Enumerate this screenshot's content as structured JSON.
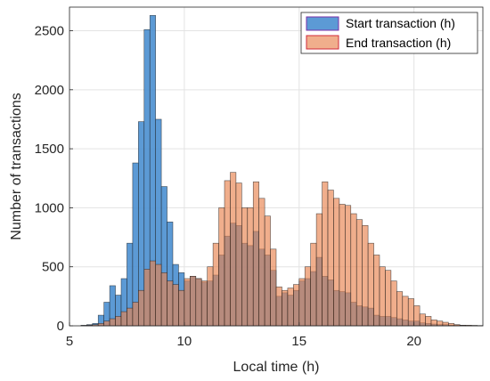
{
  "chart_data": {
    "type": "bar",
    "title": "",
    "xlabel": "Local time (h)",
    "ylabel": "Number of transactions",
    "xlim": [
      5,
      23
    ],
    "ylim": [
      0,
      2700
    ],
    "xticks": [
      "5",
      "10",
      "15",
      "20"
    ],
    "yticks": [
      "0",
      "500",
      "1000",
      "1500",
      "2000",
      "2500"
    ],
    "grid": true,
    "legend_position": "top-right",
    "bin_width": 0.25,
    "x": [
      5.5,
      5.75,
      6.0,
      6.25,
      6.5,
      6.75,
      7.0,
      7.25,
      7.5,
      7.75,
      8.0,
      8.25,
      8.5,
      8.75,
      9.0,
      9.25,
      9.5,
      9.75,
      10.0,
      10.25,
      10.5,
      10.75,
      11.0,
      11.25,
      11.5,
      11.75,
      12.0,
      12.25,
      12.5,
      12.75,
      13.0,
      13.25,
      13.5,
      13.75,
      14.0,
      14.25,
      14.5,
      14.75,
      15.0,
      15.25,
      15.5,
      15.75,
      16.0,
      16.25,
      16.5,
      16.75,
      17.0,
      17.25,
      17.5,
      17.75,
      18.0,
      18.25,
      18.5,
      18.75,
      19.0,
      19.25,
      19.5,
      19.75,
      20.0,
      20.25,
      20.5,
      20.75,
      21.0,
      21.25,
      21.5,
      21.75,
      22.0,
      22.25,
      22.5,
      22.75
    ],
    "series": [
      {
        "name": "Start transaction (h)",
        "color": "#4a8fd0",
        "values": [
          5,
          10,
          20,
          90,
          200,
          340,
          260,
          400,
          700,
          1380,
          1730,
          2510,
          2630,
          1750,
          1180,
          880,
          520,
          450,
          380,
          420,
          400,
          370,
          380,
          430,
          600,
          760,
          870,
          850,
          700,
          680,
          800,
          650,
          600,
          470,
          250,
          280,
          260,
          300,
          380,
          400,
          460,
          580,
          420,
          390,
          300,
          290,
          280,
          200,
          170,
          160,
          150,
          90,
          80,
          80,
          70,
          60,
          50,
          40,
          40,
          25,
          20,
          15,
          10,
          10,
          5,
          5,
          5,
          3,
          3,
          2
        ]
      },
      {
        "name": "End transaction (h)",
        "color": "#e8834e",
        "values": [
          2,
          5,
          10,
          20,
          40,
          60,
          80,
          120,
          150,
          200,
          300,
          480,
          550,
          520,
          450,
          380,
          350,
          300,
          400,
          420,
          400,
          380,
          500,
          700,
          1000,
          1230,
          1300,
          1210,
          1000,
          1000,
          1220,
          1080,
          930,
          650,
          330,
          300,
          320,
          350,
          400,
          500,
          700,
          950,
          1220,
          1150,
          1080,
          1030,
          1020,
          950,
          900,
          850,
          700,
          600,
          500,
          470,
          380,
          290,
          250,
          230,
          170,
          100,
          80,
          50,
          40,
          30,
          20,
          10,
          5,
          5,
          3,
          2
        ]
      }
    ]
  }
}
